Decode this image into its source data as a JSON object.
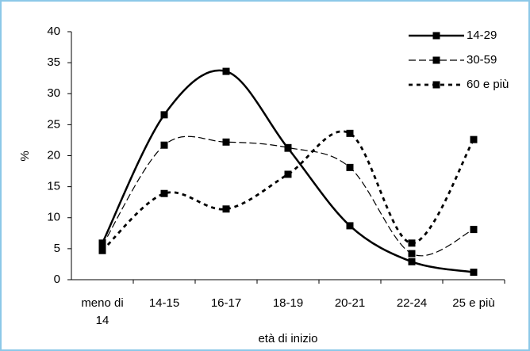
{
  "chart_data": {
    "type": "line",
    "categories": [
      "meno di 14",
      "14-15",
      "16-17",
      "18-19",
      "20-21",
      "22-24",
      "25 e più"
    ],
    "series": [
      {
        "name": "14-29",
        "color": "#000000",
        "style": "solid",
        "values": [
          5.9,
          26.6,
          33.6,
          21.2,
          8.7,
          2.9,
          1.2
        ]
      },
      {
        "name": "30-59",
        "color": "#000000",
        "style": "dashed",
        "values": [
          5.5,
          21.7,
          22.2,
          21.3,
          18.1,
          4.2,
          8.1
        ]
      },
      {
        "name": "60 e più",
        "color": "#000000",
        "style": "dotted",
        "values": [
          4.7,
          13.9,
          11.4,
          17,
          23.6,
          5.9,
          22.6
        ]
      }
    ],
    "ylim": [
      0,
      40
    ],
    "yticks": [
      0,
      5,
      10,
      15,
      20,
      25,
      30,
      35,
      40
    ],
    "ylabel": "%",
    "xlabel": "età di inizio",
    "grid": false,
    "legend": "top-right"
  }
}
